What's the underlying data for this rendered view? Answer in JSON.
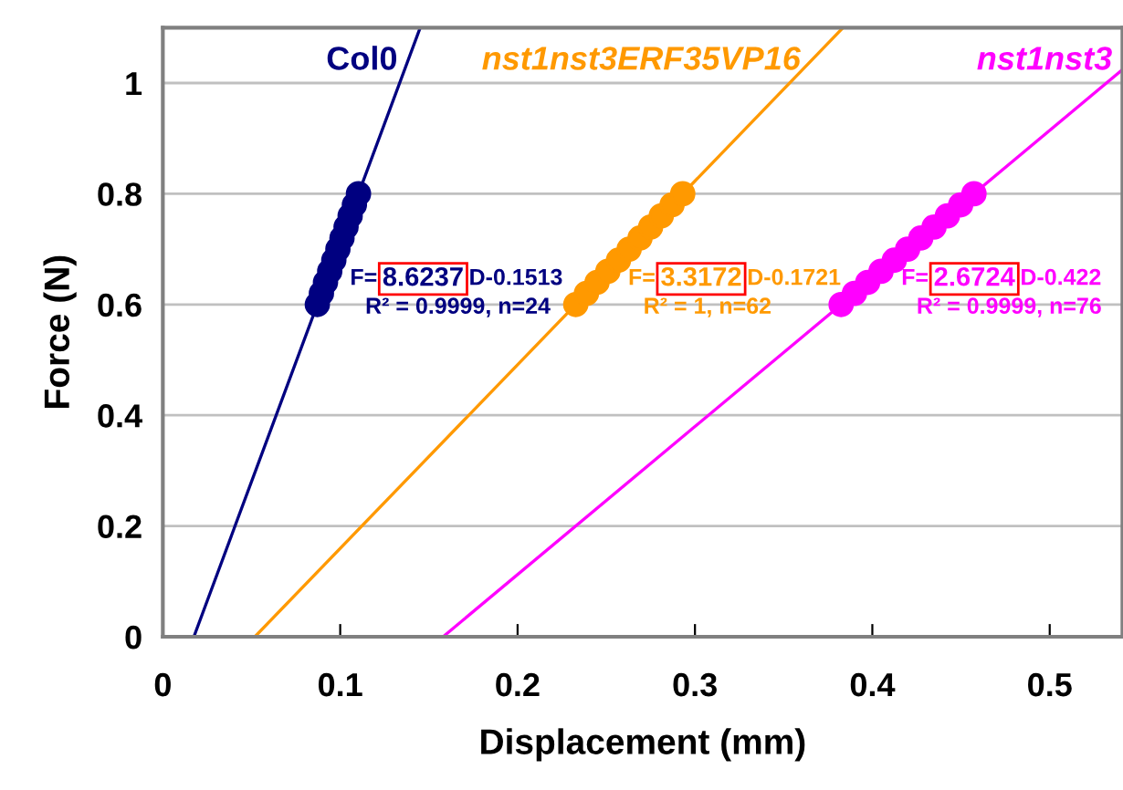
{
  "chart_data": {
    "type": "scatter",
    "xlabel": "Displacement (mm)",
    "ylabel": "Force (N)",
    "xlim": [
      0,
      0.541
    ],
    "ylim": [
      0,
      1.1
    ],
    "xticks": [
      0,
      0.1,
      0.2,
      0.3,
      0.4,
      0.5
    ],
    "yticks": [
      0,
      0.2,
      0.4,
      0.6,
      0.8,
      1
    ],
    "grid": "y",
    "series": [
      {
        "name": "Col0",
        "marker": "circle",
        "color": "#000080",
        "x": [
          0.0871,
          0.0894,
          0.0917,
          0.0941,
          0.0964,
          0.0987,
          0.101,
          0.1033,
          0.1056,
          0.108,
          0.1103
        ],
        "values": [
          0.6,
          0.62,
          0.64,
          0.66,
          0.68,
          0.7,
          0.72,
          0.74,
          0.76,
          0.78,
          0.8
        ]
      },
      {
        "name": "nst1nst3ERF35VP16",
        "marker": "circle",
        "color": "#ff9900",
        "x": [
          0.2328,
          0.2388,
          0.2448,
          0.2509,
          0.2569,
          0.2629,
          0.269,
          0.275,
          0.281,
          0.2871,
          0.2931
        ],
        "values": [
          0.6,
          0.62,
          0.64,
          0.66,
          0.68,
          0.7,
          0.72,
          0.74,
          0.76,
          0.78,
          0.8
        ]
      },
      {
        "name": "nst1nst3",
        "marker": "circle",
        "color": "#ff00ff",
        "x": [
          0.3824,
          0.3899,
          0.3974,
          0.4049,
          0.4124,
          0.4199,
          0.4273,
          0.4348,
          0.4423,
          0.4498,
          0.4573
        ],
        "values": [
          0.6,
          0.62,
          0.64,
          0.66,
          0.68,
          0.7,
          0.72,
          0.74,
          0.76,
          0.78,
          0.8
        ]
      },
      {
        "type": "line",
        "color": "#000080",
        "x": [
          0.0175,
          0.1451
        ],
        "values": [
          0,
          1.1
        ]
      },
      {
        "type": "line",
        "color": "#ff9900",
        "x": [
          0.0519,
          0.3835
        ],
        "values": [
          0,
          1.1
        ]
      },
      {
        "type": "line",
        "color": "#ff00ff",
        "x": [
          0.158,
          0.541
        ],
        "values": [
          0,
          1.024
        ]
      }
    ],
    "annotations": [
      "F= 8.6237 D-0.1513",
      "R² = 0.9999, n=24",
      "F= 3.3172 D-0.1721",
      "R² = 1, n=62",
      "F= 2.6724 D-0.422",
      "R² = 0.9999, n=76"
    ]
  }
}
